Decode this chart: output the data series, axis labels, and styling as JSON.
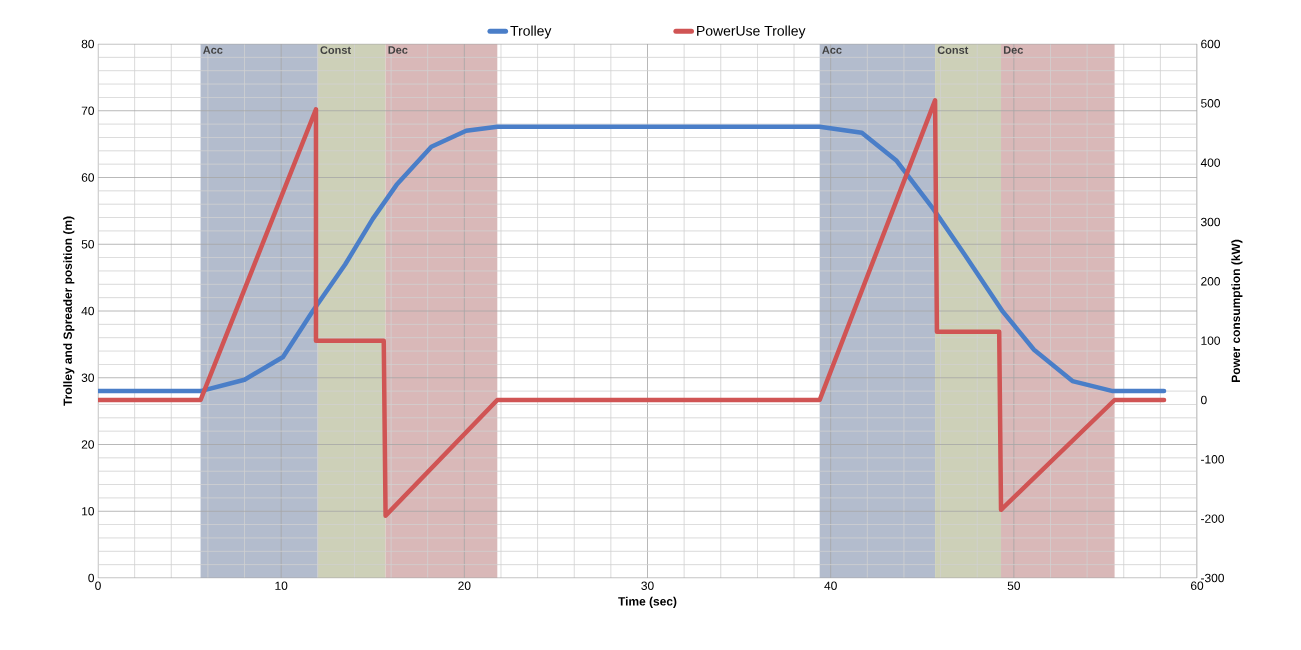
{
  "chart_data": {
    "type": "line",
    "xlabel": "Time (sec)",
    "ylabel": "Trolley and Spreader position (m)",
    "y2label": "Power consumption (kW)",
    "xlim": [
      0,
      60
    ],
    "xticks": [
      0,
      10,
      20,
      30,
      40,
      50,
      60
    ],
    "ylim": [
      0,
      80
    ],
    "yticks": [
      0,
      10,
      20,
      30,
      40,
      50,
      60,
      70,
      80
    ],
    "y2lim": [
      -300,
      600
    ],
    "y2ticks": [
      -300,
      -200,
      -100,
      0,
      100,
      200,
      300,
      400,
      500,
      600
    ],
    "grid": true,
    "legend": "top",
    "bands": [
      {
        "axis": "x",
        "from": 5.6,
        "to": 12,
        "label": "Acc",
        "color": "#b3bccd"
      },
      {
        "axis": "x",
        "from": 12,
        "to": 15.7,
        "label": "Const",
        "color": "#cdd0b8"
      },
      {
        "axis": "x",
        "from": 15.7,
        "to": 21.8,
        "label": "Dec",
        "color": "#d9b8b8"
      },
      {
        "axis": "x",
        "from": 39.4,
        "to": 45.7,
        "label": "Acc",
        "color": "#b3bccd"
      },
      {
        "axis": "x",
        "from": 45.7,
        "to": 49.3,
        "label": "Const",
        "color": "#cdd0b8"
      },
      {
        "axis": "x",
        "from": 49.3,
        "to": 55.5,
        "label": "Dec",
        "color": "#d9b8b8"
      }
    ],
    "series": [
      {
        "name": "Trolley",
        "color": "#4a7ec8",
        "x": [
          0,
          5.6,
          8,
          10.1,
          11.7,
          13.5,
          15,
          16.3,
          18.2,
          20.1,
          21.8,
          39.4,
          41.7,
          43.6,
          45.6,
          47.3,
          49.4,
          51.1,
          53.2,
          55.4,
          58.2
        ],
        "values": [
          28,
          28,
          29.7,
          33.1,
          39.9,
          47,
          53.8,
          58.9,
          64.6,
          67,
          67.6,
          67.6,
          66.7,
          62.5,
          55.3,
          48.5,
          39.9,
          34.2,
          29.5,
          28,
          28
        ]
      },
      {
        "name": "PowerUse Trolley",
        "color": "#d05454",
        "axis": "y2",
        "x": [
          0,
          5.6,
          11.9,
          11.9,
          15.6,
          15.7,
          21.8,
          39.4,
          45.7,
          45.8,
          49.2,
          49.3,
          55.5,
          58.2
        ],
        "values": [
          0,
          0,
          490,
          100,
          100,
          -195,
          0,
          0,
          505,
          115,
          115,
          -185,
          0,
          0
        ]
      }
    ]
  }
}
